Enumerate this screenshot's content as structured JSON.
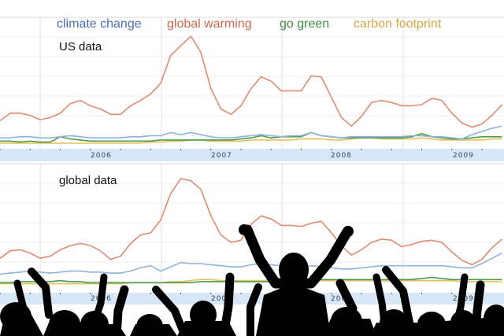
{
  "legend": [
    {
      "name": "climate change",
      "color": "#4a6fb5",
      "line_color": "#8fb3dc"
    },
    {
      "name": "global warming",
      "color": "#d0664c",
      "line_color": "#e08a72"
    },
    {
      "name": "go green",
      "color": "#3f8f3f",
      "line_color": "#4f9a4f"
    },
    {
      "name": "carbon footprint",
      "color": "#d4a845",
      "line_color": "#e3c25c"
    }
  ],
  "chart_data": [
    {
      "type": "line",
      "title": "US data",
      "x_tick_labels": [
        "2006",
        "2007",
        "2008",
        "2009"
      ],
      "ylim": [
        0,
        100
      ],
      "grid": true,
      "legend_placement": "top",
      "x": [
        "2005-09",
        "2005-10",
        "2005-11",
        "2005-12",
        "2006-01",
        "2006-02",
        "2006-03",
        "2006-04",
        "2006-05",
        "2006-06",
        "2006-07",
        "2006-08",
        "2006-09",
        "2006-10",
        "2006-11",
        "2006-12",
        "2007-01",
        "2007-02",
        "2007-03",
        "2007-04",
        "2007-05",
        "2007-06",
        "2007-07",
        "2007-08",
        "2007-09",
        "2007-10",
        "2007-11",
        "2007-12",
        "2008-01",
        "2008-02",
        "2008-03",
        "2008-04",
        "2008-05",
        "2008-06",
        "2008-07",
        "2008-08",
        "2008-09",
        "2008-10",
        "2008-11",
        "2008-12",
        "2009-01",
        "2009-02",
        "2009-03",
        "2009-04",
        "2009-05",
        "2009-06",
        "2009-07",
        "2009-08",
        "2009-09",
        "2009-10",
        "2009-11"
      ],
      "series": [
        {
          "name": "climate change",
          "values": [
            5,
            5,
            6,
            6,
            5,
            5,
            6,
            7,
            6,
            5,
            5,
            5,
            5,
            6,
            6,
            7,
            7,
            10,
            8,
            10,
            8,
            6,
            5,
            5,
            6,
            7,
            8,
            7,
            6,
            7,
            7,
            10,
            7,
            6,
            5,
            6,
            6,
            6,
            6,
            6,
            6,
            7,
            7,
            6,
            6,
            5,
            4,
            8,
            11,
            14,
            16
          ]
        },
        {
          "name": "global warming",
          "values": [
            21,
            28,
            28,
            26,
            22,
            24,
            28,
            37,
            40,
            35,
            32,
            27,
            27,
            35,
            40,
            46,
            56,
            82,
            91,
            100,
            85,
            51,
            32,
            27,
            35,
            51,
            62,
            58,
            49,
            49,
            49,
            63,
            62,
            43,
            24,
            16,
            25,
            38,
            40,
            38,
            35,
            35,
            36,
            42,
            40,
            28,
            19,
            15,
            18,
            26,
            36
          ]
        },
        {
          "name": "go green",
          "values": [
            2,
            2,
            1,
            2,
            1,
            1,
            6,
            4,
            3,
            2,
            2,
            2,
            2,
            2,
            2,
            2,
            3,
            3,
            3,
            3,
            3,
            3,
            3,
            3,
            4,
            5,
            7,
            5,
            6,
            6,
            6,
            10,
            7,
            6,
            5,
            5,
            5,
            5,
            5,
            5,
            5,
            6,
            9,
            6,
            5,
            4,
            4,
            5,
            6,
            6,
            6
          ]
        },
        {
          "name": "carbon footprint",
          "values": [
            0,
            0,
            0,
            0,
            0,
            0,
            0,
            0,
            0,
            0,
            0,
            0,
            0,
            0,
            0,
            1,
            1,
            2,
            2,
            3,
            3,
            2,
            2,
            2,
            2,
            3,
            3,
            3,
            3,
            3,
            4,
            4,
            4,
            3,
            3,
            4,
            5,
            5,
            4,
            4,
            4,
            4,
            5,
            4,
            3,
            3,
            3,
            3,
            3,
            4,
            4
          ]
        }
      ]
    },
    {
      "type": "line",
      "title": "global data",
      "x_tick_labels": [
        "2006",
        "2007",
        "2008",
        "2009"
      ],
      "ylim": [
        0,
        100
      ],
      "grid": true,
      "x": [
        "2005-09",
        "2005-10",
        "2005-11",
        "2005-12",
        "2006-01",
        "2006-02",
        "2006-03",
        "2006-04",
        "2006-05",
        "2006-06",
        "2006-07",
        "2006-08",
        "2006-09",
        "2006-10",
        "2006-11",
        "2006-12",
        "2007-01",
        "2007-02",
        "2007-03",
        "2007-04",
        "2007-05",
        "2007-06",
        "2007-07",
        "2007-08",
        "2007-09",
        "2007-10",
        "2007-11",
        "2007-12",
        "2008-01",
        "2008-02",
        "2008-03",
        "2008-04",
        "2008-05",
        "2008-06",
        "2008-07",
        "2008-08",
        "2008-09",
        "2008-10",
        "2008-11",
        "2008-12",
        "2009-01",
        "2009-02",
        "2009-03",
        "2009-04",
        "2009-05",
        "2009-06",
        "2009-07",
        "2009-08",
        "2009-09",
        "2009-10",
        "2009-11"
      ],
      "series": [
        {
          "name": "climate change",
          "values": [
            10,
            11,
            12,
            13,
            12,
            11,
            12,
            13,
            13,
            12,
            12,
            11,
            11,
            13,
            16,
            18,
            13,
            17,
            21,
            20,
            20,
            19,
            18,
            17,
            17,
            19,
            20,
            19,
            18,
            17,
            17,
            18,
            17,
            16,
            15,
            15,
            16,
            17,
            18,
            18,
            18,
            18,
            18,
            18,
            18,
            17,
            16,
            16,
            20,
            25,
            30
          ]
        },
        {
          "name": "global warming",
          "values": [
            25,
            32,
            33,
            30,
            25,
            27,
            33,
            37,
            39,
            37,
            32,
            24,
            27,
            39,
            47,
            49,
            61,
            86,
            100,
            98,
            90,
            65,
            47,
            40,
            42,
            57,
            65,
            62,
            56,
            56,
            55,
            58,
            60,
            49,
            37,
            28,
            33,
            40,
            43,
            42,
            36,
            38,
            41,
            42,
            40,
            31,
            23,
            19,
            24,
            35,
            43
          ]
        },
        {
          "name": "go green",
          "values": [
            2,
            2,
            3,
            3,
            3,
            3,
            4,
            3,
            3,
            2,
            2,
            2,
            2,
            2,
            2,
            2,
            2,
            2,
            2,
            2,
            3,
            3,
            3,
            3,
            3,
            3,
            3,
            3,
            3,
            4,
            5,
            6,
            5,
            5,
            5,
            5,
            5,
            5,
            5,
            5,
            5,
            5,
            6,
            7,
            6,
            5,
            5,
            5,
            5,
            5,
            5
          ]
        },
        {
          "name": "carbon footprint",
          "values": [
            1,
            1,
            1,
            1,
            1,
            1,
            1,
            1,
            1,
            1,
            1,
            1,
            1,
            2,
            2,
            2,
            2,
            3,
            3,
            4,
            5,
            5,
            4,
            4,
            4,
            4,
            4,
            4,
            4,
            4,
            5,
            5,
            4,
            4,
            4,
            4,
            4,
            4,
            4,
            4,
            4,
            4,
            4,
            4,
            4,
            4,
            3,
            3,
            3,
            3,
            3
          ]
        }
      ]
    }
  ]
}
